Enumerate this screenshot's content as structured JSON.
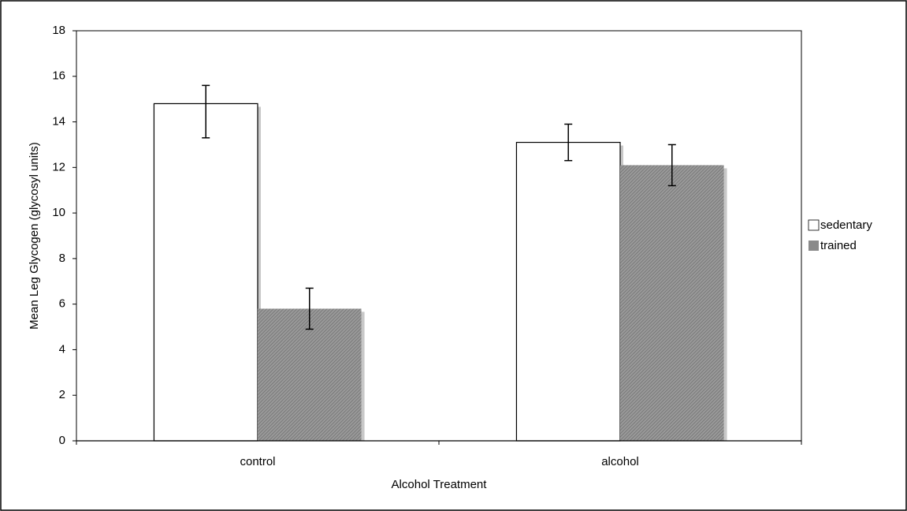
{
  "chart_data": {
    "type": "bar",
    "x_label": "Alcohol Treatment",
    "y_label": "Mean Leg Glycogen (glycosyl units)",
    "categories": [
      "control",
      "alcohol"
    ],
    "series": [
      {
        "name": "sedentary",
        "color": "#ffffff",
        "values": [
          14.8,
          13.1
        ],
        "err_minus": [
          1.5,
          0.8
        ],
        "err_plus": [
          0.8,
          0.8
        ]
      },
      {
        "name": "trained",
        "color": "#8a8a8a",
        "values": [
          5.8,
          12.1
        ],
        "err_minus": [
          0.9,
          0.9
        ],
        "err_plus": [
          0.9,
          0.9
        ]
      }
    ],
    "ylim": [
      0,
      18
    ],
    "yticks": [
      0,
      2,
      4,
      6,
      8,
      10,
      12,
      14,
      16,
      18
    ],
    "legend": "right"
  }
}
